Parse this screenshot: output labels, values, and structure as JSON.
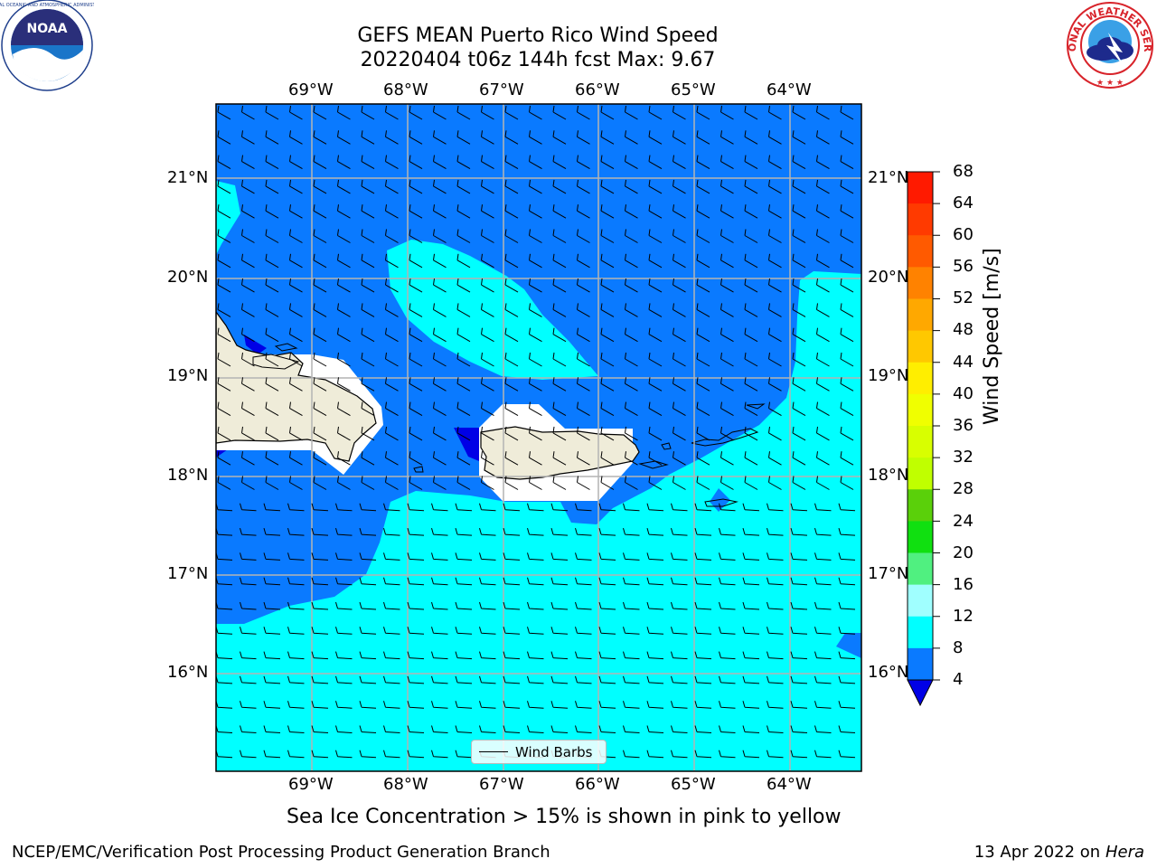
{
  "header": {
    "title_line1": "GEFS MEAN Puerto Rico Wind Speed",
    "title_line2": "20220404 t06z 144h fcst   Max: 9.67"
  },
  "logos": {
    "left": "noaa-logo",
    "right": "national-weather-service-logo",
    "nws_text": "NATIONAL WEATHER SERVICE"
  },
  "map": {
    "lon_labels": [
      "69°W",
      "68°W",
      "67°W",
      "66°W",
      "65°W",
      "64°W"
    ],
    "lat_labels": [
      "21°N",
      "20°N",
      "19°N",
      "18°N",
      "17°N",
      "16°N"
    ],
    "lon_range": [
      -70.0,
      -63.25
    ],
    "lat_range": [
      15.0,
      21.75
    ],
    "gridlines": true,
    "legend_label": "Wind Barbs",
    "colors": {
      "wind_4_8": "#0a7aff",
      "wind_8_12": "#00ffff",
      "below_4": "#0000e6",
      "land": "#efecd9",
      "grid": "#b4b4b4"
    }
  },
  "colorbar": {
    "label": "Wind Speed [m/s]",
    "ticks": [
      "68",
      "64",
      "60",
      "56",
      "52",
      "48",
      "44",
      "40",
      "36",
      "32",
      "28",
      "24",
      "20",
      "16",
      "12",
      "8",
      "4"
    ],
    "colors": [
      "#ff1a00",
      "#ff3a00",
      "#ff5a00",
      "#ff8200",
      "#ffa800",
      "#ffc800",
      "#ffee00",
      "#f0ff00",
      "#d8ff00",
      "#c0ff00",
      "#5ad00a",
      "#10e010",
      "#50f080",
      "#a0ffff",
      "#50ffff",
      "#00ffff",
      "#0a7aff"
    ],
    "under_color": "#0000e6"
  },
  "notes": {
    "sea_ice": "Sea Ice Concentration > 15% is shown in pink to yellow"
  },
  "footer": {
    "left": "NCEP/EMC/Verification Post Processing Product Generation Branch",
    "date": "13 Apr 2022 on ",
    "machine": "Hera"
  }
}
